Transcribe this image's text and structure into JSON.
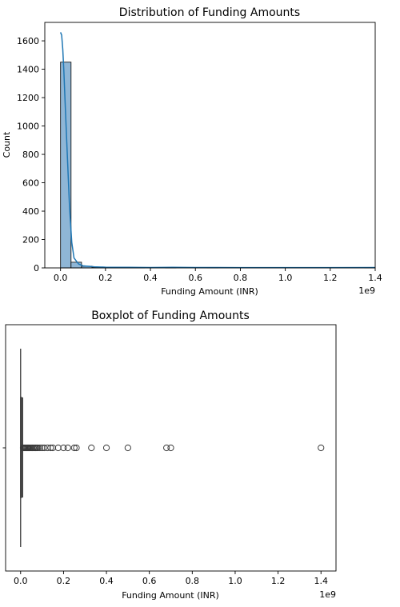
{
  "chart_data": [
    {
      "type": "bar",
      "title": "Distribution of Funding Amounts",
      "xlabel": "Funding Amount (INR)",
      "ylabel": "Count",
      "x_offset_label": "1e9",
      "xlim": [
        -0.07,
        1.4
      ],
      "ylim": [
        0,
        1730
      ],
      "x_ticks": [
        0.0,
        0.2,
        0.4,
        0.6,
        0.8,
        1.0,
        1.2,
        1.4
      ],
      "x_tick_labels": [
        "0.0",
        "0.2",
        "0.4",
        "0.6",
        "0.8",
        "1.0",
        "1.2",
        "1.4"
      ],
      "y_ticks": [
        0,
        200,
        400,
        600,
        800,
        1000,
        1200,
        1400,
        1600
      ],
      "y_tick_labels": [
        "0",
        "200",
        "400",
        "600",
        "800",
        "1000",
        "1200",
        "1400",
        "1600"
      ],
      "bin_edges": [
        0.0,
        0.0467,
        0.0933,
        0.14,
        0.1867,
        0.2333,
        0.28,
        0.3267,
        0.3733,
        0.42,
        0.4667,
        0.5133,
        0.56,
        0.6067,
        0.6533,
        0.7,
        0.7467,
        0.7933,
        0.84,
        0.8867,
        0.9333,
        0.98,
        1.0267,
        1.0733,
        1.12,
        1.1667,
        1.2133,
        1.26,
        1.3067,
        1.3533,
        1.4
      ],
      "values": [
        1450,
        40,
        12,
        5,
        3,
        2,
        1,
        1,
        0,
        0,
        2,
        0,
        0,
        0,
        2,
        0,
        0,
        0,
        0,
        0,
        0,
        0,
        0,
        0,
        0,
        0,
        0,
        0,
        0,
        1
      ],
      "kde": {
        "x": [
          0.0,
          0.005,
          0.01,
          0.015,
          0.02,
          0.03,
          0.04,
          0.05,
          0.06,
          0.08,
          0.1,
          0.15,
          0.2,
          0.3,
          0.4,
          0.5,
          0.6,
          0.7,
          0.8,
          1.0,
          1.2,
          1.4
        ],
        "y": [
          1660,
          1640,
          1540,
          1380,
          1180,
          800,
          430,
          180,
          70,
          28,
          15,
          8,
          5,
          4,
          3,
          4,
          3,
          3,
          2,
          2,
          2,
          3
        ]
      },
      "colors": {
        "bar_fill": "#8fb6d6",
        "bar_edge": "#1a1a1a",
        "kde_line": "#1f77b4"
      },
      "grid": false,
      "legend": "none"
    },
    {
      "type": "box",
      "title": "Boxplot of Funding Amounts",
      "xlabel": "Funding Amount (INR)",
      "x_offset_label": "1e9",
      "xlim": [
        -0.07,
        1.47
      ],
      "x_ticks": [
        0.0,
        0.2,
        0.4,
        0.6,
        0.8,
        1.0,
        1.2,
        1.4
      ],
      "x_tick_labels": [
        "0.0",
        "0.2",
        "0.4",
        "0.6",
        "0.8",
        "1.0",
        "1.2",
        "1.4"
      ],
      "box": {
        "whisker_low": 0.0,
        "q1": 0.0006,
        "median": 0.0015,
        "q3": 0.004,
        "whisker_high": 0.0095
      },
      "outliers": [
        0.012,
        0.016,
        0.02,
        0.024,
        0.028,
        0.032,
        0.036,
        0.04,
        0.045,
        0.05,
        0.055,
        0.06,
        0.065,
        0.07,
        0.075,
        0.08,
        0.09,
        0.1,
        0.11,
        0.125,
        0.14,
        0.15,
        0.175,
        0.2,
        0.22,
        0.25,
        0.26,
        0.33,
        0.4,
        0.5,
        0.68,
        0.7,
        1.4
      ],
      "colors": {
        "box_edge": "#3a3a3a",
        "outlier_edge": "#3a3a3a"
      },
      "grid": false,
      "legend": "none"
    }
  ]
}
